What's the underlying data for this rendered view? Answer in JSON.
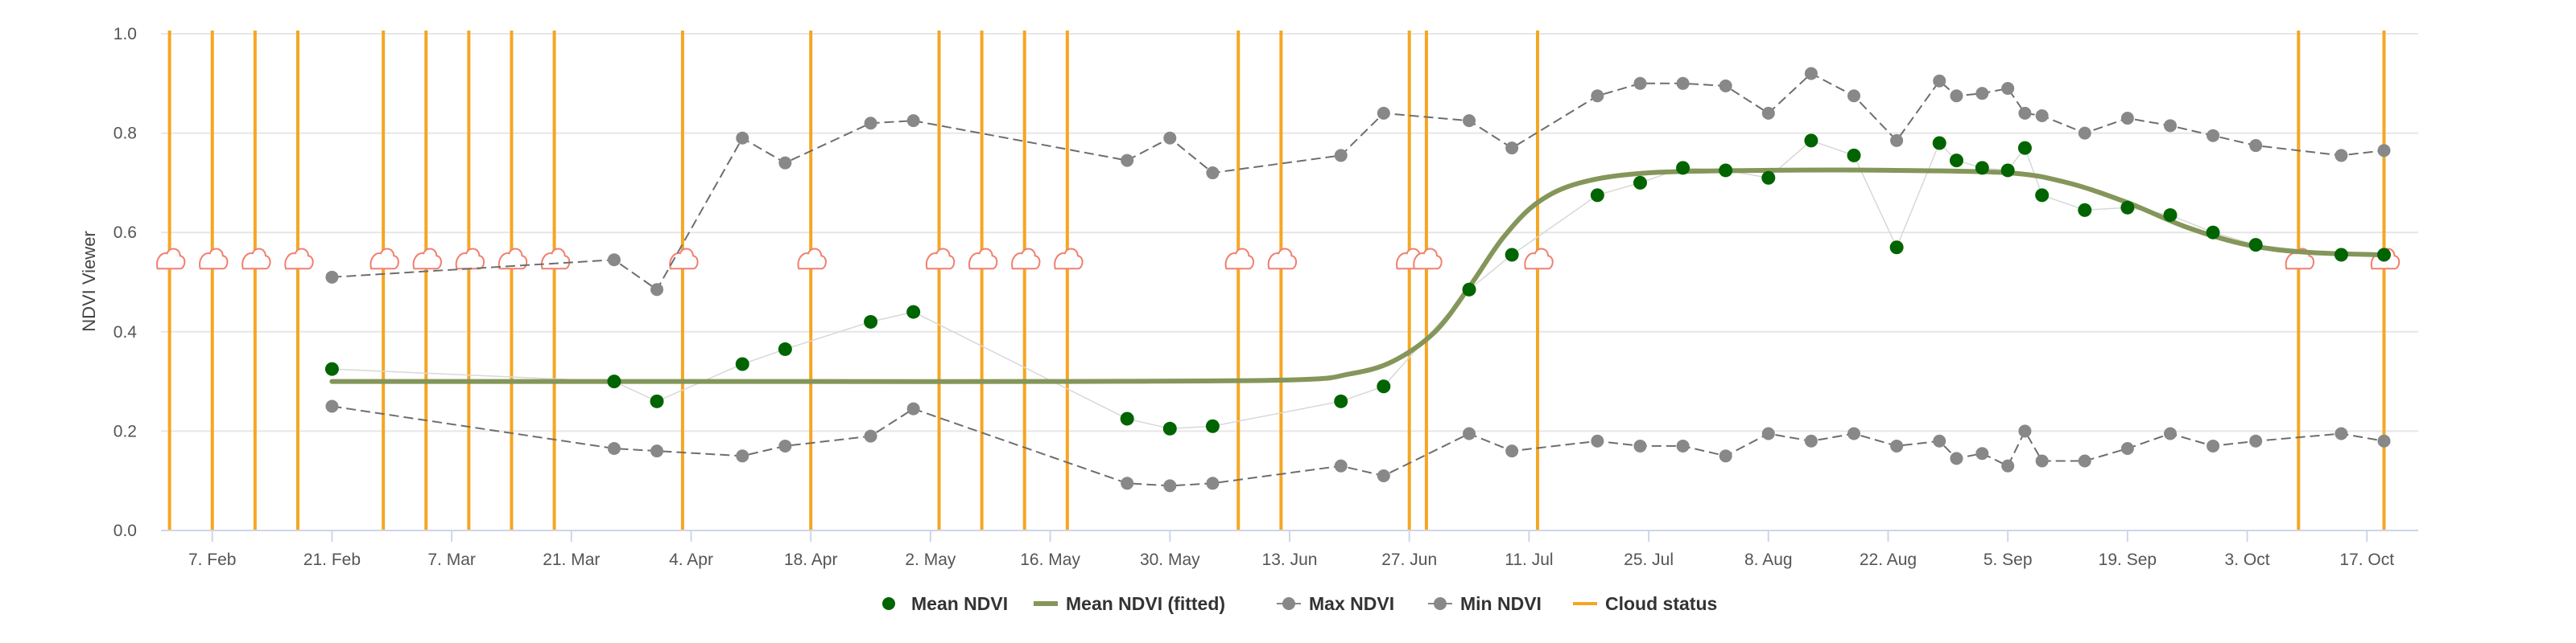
{
  "chart_data": {
    "type": "line",
    "ylabel": "NDVI Viewer",
    "ylim": [
      0,
      1
    ],
    "yticks": [
      0.0,
      0.2,
      0.4,
      0.6,
      0.8,
      1.0
    ],
    "ytick_labels": [
      "0.0",
      "0.2",
      "0.4",
      "0.6",
      "0.8",
      "1.0"
    ],
    "xlim": [
      "2021-02-01",
      "2021-10-23"
    ],
    "xticks": [
      "2021-02-07",
      "2021-02-21",
      "2021-03-07",
      "2021-03-21",
      "2021-04-04",
      "2021-04-18",
      "2021-05-02",
      "2021-05-16",
      "2021-05-30",
      "2021-06-13",
      "2021-06-27",
      "2021-07-11",
      "2021-07-25",
      "2021-08-08",
      "2021-08-22",
      "2021-09-05",
      "2021-09-19",
      "2021-10-03",
      "2021-10-17"
    ],
    "xtick_labels": [
      "7. Feb",
      "21. Feb",
      "7. Mar",
      "21. Mar",
      "4. Apr",
      "18. Apr",
      "2. May",
      "16. May",
      "30. May",
      "13. Jun",
      "27. Jun",
      "11. Jul",
      "25. Jul",
      "8. Aug",
      "22. Aug",
      "5. Sep",
      "19. Sep",
      "3. Oct",
      "17. Oct"
    ],
    "grid": true,
    "legend_position": "bottom",
    "series": [
      {
        "name": "Mean NDVI",
        "kind": "scatter",
        "color": "#006400",
        "x": [
          "2021-02-21",
          "2021-03-26",
          "2021-03-31",
          "2021-04-10",
          "2021-04-15",
          "2021-04-25",
          "2021-04-30",
          "2021-05-25",
          "2021-05-30",
          "2021-06-04",
          "2021-06-19",
          "2021-06-24",
          "2021-07-04",
          "2021-07-09",
          "2021-07-19",
          "2021-07-24",
          "2021-07-29",
          "2021-08-03",
          "2021-08-08",
          "2021-08-13",
          "2021-08-18",
          "2021-08-23",
          "2021-08-28",
          "2021-08-30",
          "2021-09-02",
          "2021-09-05",
          "2021-09-07",
          "2021-09-09",
          "2021-09-14",
          "2021-09-19",
          "2021-09-24",
          "2021-09-29",
          "2021-10-04",
          "2021-10-14",
          "2021-10-19"
        ],
        "values": [
          0.325,
          0.3,
          0.26,
          0.335,
          0.365,
          0.42,
          0.44,
          0.225,
          0.205,
          0.21,
          0.26,
          0.29,
          0.485,
          0.555,
          0.675,
          0.7,
          0.73,
          0.725,
          0.71,
          0.785,
          0.755,
          0.57,
          0.78,
          0.745,
          0.73,
          0.725,
          0.77,
          0.675,
          0.645,
          0.65,
          0.635,
          0.6,
          0.575,
          0.555,
          0.555
        ]
      },
      {
        "name": "Mean NDVI (fitted)",
        "kind": "line",
        "color": "#84965a",
        "x": [
          "2021-02-21",
          "2021-03-21",
          "2021-04-18",
          "2021-05-16",
          "2021-06-13",
          "2021-06-20",
          "2021-06-25",
          "2021-06-30",
          "2021-07-04",
          "2021-07-08",
          "2021-07-12",
          "2021-07-17",
          "2021-07-25",
          "2021-08-08",
          "2021-08-22",
          "2021-09-05",
          "2021-09-12",
          "2021-09-19",
          "2021-09-26",
          "2021-10-03",
          "2021-10-10",
          "2021-10-19"
        ],
        "values": [
          0.3,
          0.3,
          0.3,
          0.3,
          0.303,
          0.315,
          0.34,
          0.4,
          0.49,
          0.59,
          0.66,
          0.7,
          0.72,
          0.725,
          0.725,
          0.72,
          0.7,
          0.66,
          0.61,
          0.575,
          0.56,
          0.555
        ]
      },
      {
        "name": "Max NDVI",
        "kind": "line-markers",
        "color": "#888888",
        "x": [
          "2021-02-21",
          "2021-03-26",
          "2021-03-31",
          "2021-04-10",
          "2021-04-15",
          "2021-04-25",
          "2021-04-30",
          "2021-05-25",
          "2021-05-30",
          "2021-06-04",
          "2021-06-19",
          "2021-06-24",
          "2021-07-04",
          "2021-07-09",
          "2021-07-19",
          "2021-07-24",
          "2021-07-29",
          "2021-08-03",
          "2021-08-08",
          "2021-08-13",
          "2021-08-18",
          "2021-08-23",
          "2021-08-28",
          "2021-08-30",
          "2021-09-02",
          "2021-09-05",
          "2021-09-07",
          "2021-09-09",
          "2021-09-14",
          "2021-09-19",
          "2021-09-24",
          "2021-09-29",
          "2021-10-04",
          "2021-10-14",
          "2021-10-19"
        ],
        "values": [
          0.51,
          0.545,
          0.485,
          0.79,
          0.74,
          0.82,
          0.825,
          0.745,
          0.79,
          0.72,
          0.755,
          0.84,
          0.825,
          0.77,
          0.875,
          0.9,
          0.9,
          0.895,
          0.84,
          0.92,
          0.875,
          0.785,
          0.905,
          0.875,
          0.88,
          0.89,
          0.84,
          0.835,
          0.8,
          0.83,
          0.815,
          0.795,
          0.775,
          0.755,
          0.765
        ]
      },
      {
        "name": "Min NDVI",
        "kind": "line-markers",
        "color": "#888888",
        "x": [
          "2021-02-21",
          "2021-03-26",
          "2021-03-31",
          "2021-04-10",
          "2021-04-15",
          "2021-04-25",
          "2021-04-30",
          "2021-05-25",
          "2021-05-30",
          "2021-06-04",
          "2021-06-19",
          "2021-06-24",
          "2021-07-04",
          "2021-07-09",
          "2021-07-19",
          "2021-07-24",
          "2021-07-29",
          "2021-08-03",
          "2021-08-08",
          "2021-08-13",
          "2021-08-18",
          "2021-08-23",
          "2021-08-28",
          "2021-08-30",
          "2021-09-02",
          "2021-09-05",
          "2021-09-07",
          "2021-09-09",
          "2021-09-14",
          "2021-09-19",
          "2021-09-24",
          "2021-09-29",
          "2021-10-04",
          "2021-10-14",
          "2021-10-19"
        ],
        "values": [
          0.25,
          0.165,
          0.16,
          0.15,
          0.17,
          0.19,
          0.245,
          0.095,
          0.09,
          0.095,
          0.13,
          0.11,
          0.195,
          0.16,
          0.18,
          0.17,
          0.17,
          0.15,
          0.195,
          0.18,
          0.195,
          0.17,
          0.18,
          0.145,
          0.155,
          0.13,
          0.2,
          0.14,
          0.14,
          0.165,
          0.195,
          0.17,
          0.18,
          0.195,
          0.18
        ]
      },
      {
        "name": "Cloud status",
        "kind": "vertical-lines",
        "color": "#f5a623",
        "x": [
          "2021-02-02",
          "2021-02-07",
          "2021-02-12",
          "2021-02-17",
          "2021-02-27",
          "2021-03-04",
          "2021-03-09",
          "2021-03-14",
          "2021-03-19",
          "2021-04-03",
          "2021-04-18",
          "2021-05-03",
          "2021-05-08",
          "2021-05-13",
          "2021-05-18",
          "2021-06-07",
          "2021-06-12",
          "2021-06-27",
          "2021-06-29",
          "2021-07-12",
          "2021-10-09",
          "2021-10-19"
        ]
      }
    ]
  },
  "legend": {
    "items": [
      {
        "label": "Mean NDVI"
      },
      {
        "label": "Mean NDVI (fitted)"
      },
      {
        "label": "Max NDVI"
      },
      {
        "label": "Min NDVI"
      },
      {
        "label": "Cloud status"
      }
    ]
  }
}
